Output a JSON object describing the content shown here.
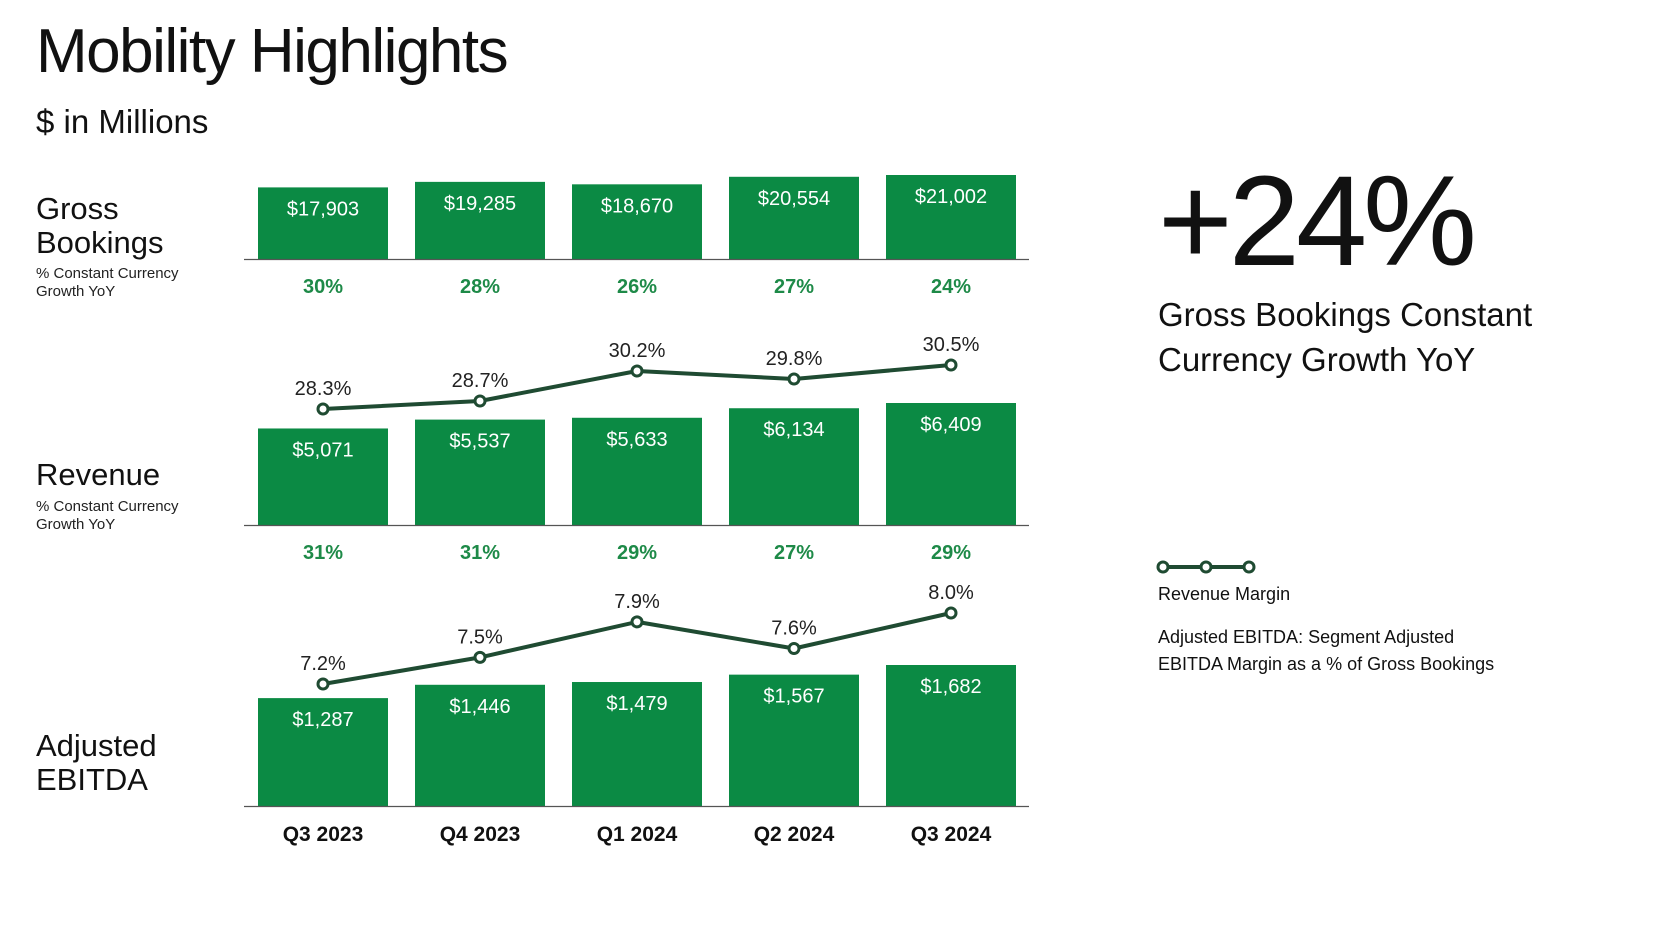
{
  "title": "Mobility Highlights",
  "subtitle": "$ in Millions",
  "rows": {
    "gross_bookings": {
      "label_line1": "Gross",
      "label_line2": "Bookings",
      "sub_line1": "% Constant Currency",
      "sub_line2": "Growth YoY"
    },
    "revenue": {
      "label": "Revenue",
      "sub_line1": "% Constant Currency",
      "sub_line2": "Growth YoY"
    },
    "adjusted_ebitda": {
      "label_line1": "Adjusted",
      "label_line2": "EBITDA"
    }
  },
  "highlight": {
    "value": "+24%",
    "caption_line1": "Gross Bookings Constant",
    "caption_line2": "Currency Growth YoY"
  },
  "legend": {
    "line_label": "Revenue Margin",
    "note_line1": "Adjusted EBITDA: Segment Adjusted",
    "note_line2": "EBITDA Margin as a % of Gross Bookings"
  },
  "colors": {
    "bar": "#0b8a44",
    "growth_text": "#1e8a48",
    "margin_line": "#1f4b32"
  },
  "chart_data": [
    {
      "type": "bar",
      "name": "Gross Bookings",
      "categories": [
        "Q3 2023",
        "Q4 2023",
        "Q1 2024",
        "Q2 2024",
        "Q3 2024"
      ],
      "values": [
        17903,
        19285,
        18670,
        20554,
        21002
      ],
      "value_labels": [
        "$17,903",
        "$19,285",
        "$18,670",
        "$20,554",
        "$21,002"
      ],
      "growth_labels": [
        "30%",
        "28%",
        "26%",
        "27%",
        "24%"
      ]
    },
    {
      "type": "bar",
      "name": "Revenue",
      "categories": [
        "Q3 2023",
        "Q4 2023",
        "Q1 2024",
        "Q2 2024",
        "Q3 2024"
      ],
      "values": [
        5071,
        5537,
        5633,
        6134,
        6409
      ],
      "value_labels": [
        "$5,071",
        "$5,537",
        "$5,633",
        "$6,134",
        "$6,409"
      ],
      "growth_labels": [
        "31%",
        "31%",
        "29%",
        "27%",
        "29%"
      ],
      "margin_values": [
        28.3,
        28.7,
        30.2,
        29.8,
        30.5
      ],
      "margin_labels": [
        "28.3%",
        "28.7%",
        "30.2%",
        "29.8%",
        "30.5%"
      ]
    },
    {
      "type": "bar",
      "name": "Adjusted EBITDA",
      "categories": [
        "Q3 2023",
        "Q4 2023",
        "Q1 2024",
        "Q2 2024",
        "Q3 2024"
      ],
      "values": [
        1287,
        1446,
        1479,
        1567,
        1682
      ],
      "value_labels": [
        "$1,287",
        "$1,446",
        "$1,479",
        "$1,567",
        "$1,682"
      ],
      "margin_values": [
        7.2,
        7.5,
        7.9,
        7.6,
        8.0
      ],
      "margin_labels": [
        "7.2%",
        "7.5%",
        "7.9%",
        "7.6%",
        "8.0%"
      ]
    }
  ]
}
